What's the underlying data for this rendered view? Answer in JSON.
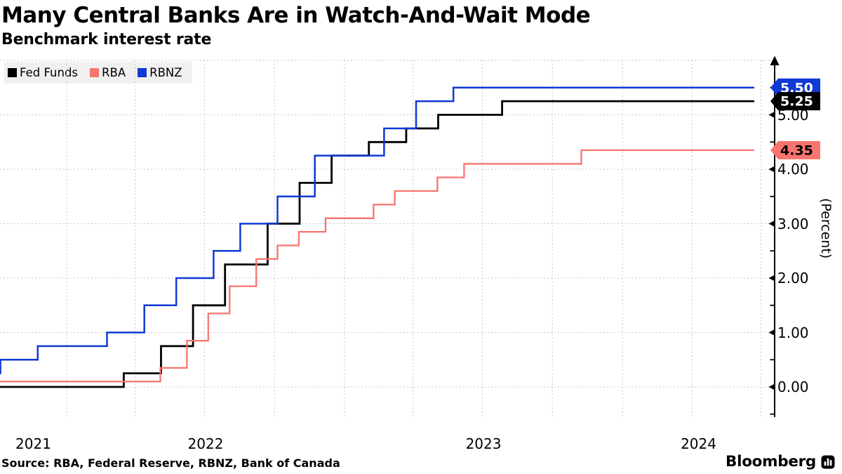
{
  "header": {
    "title": "Many Central Banks Are in Watch-And-Wait Mode",
    "subtitle": "Benchmark interest rate"
  },
  "legend": {
    "items": [
      {
        "label": "Fed Funds",
        "color": "#000000"
      },
      {
        "label": "RBA",
        "color": "#f8746f"
      },
      {
        "label": "RBNZ",
        "color": "#1139d4"
      }
    ]
  },
  "chart_data": {
    "type": "line",
    "line_style": "step-after",
    "title": "Many Central Banks Are in Watch-And-Wait Mode",
    "subtitle": "Benchmark interest rate",
    "ylabel": "(Percent)",
    "unit": "percent",
    "x_start": "2021-10-04",
    "x_end": "2024-06-21",
    "ylim": [
      -0.55,
      6.05
    ],
    "grid": "both",
    "legend_position": "top-left",
    "y_major_ticks": [
      0,
      1,
      2,
      3,
      4,
      5
    ],
    "y_tick_labels": [
      "0.00",
      "1.00",
      "2.00",
      "3.00",
      "4.00",
      "5.00"
    ],
    "y_minor_tick_step": 0.5,
    "x_year_labels": [
      "2021",
      "2022",
      "2023",
      "2024"
    ],
    "x_grid_quarters": [
      "2022-01-01",
      "2022-04-01",
      "2022-07-01",
      "2022-10-01",
      "2023-01-01",
      "2023-04-01",
      "2023-07-01",
      "2023-10-01",
      "2024-01-01",
      "2024-04-01",
      "2024-07-01"
    ],
    "series": [
      {
        "name": "Fed Funds",
        "color": "#000000",
        "initial_value": 0.0,
        "changes": [
          [
            "2022-03-17",
            0.25
          ],
          [
            "2022-05-05",
            0.75
          ],
          [
            "2022-06-16",
            1.5
          ],
          [
            "2022-07-28",
            2.25
          ],
          [
            "2022-09-22",
            3.0
          ],
          [
            "2022-11-03",
            3.75
          ],
          [
            "2022-12-15",
            4.25
          ],
          [
            "2023-02-02",
            4.5
          ],
          [
            "2023-03-23",
            4.75
          ],
          [
            "2023-05-04",
            5.0
          ],
          [
            "2023-07-27",
            5.25
          ]
        ],
        "final_value": 5.25,
        "end_label": "5.25",
        "end_label_bg": "#000000",
        "end_label_fg": "#ffffff"
      },
      {
        "name": "RBA",
        "color": "#f8746f",
        "initial_value": 0.1,
        "changes": [
          [
            "2022-05-04",
            0.35
          ],
          [
            "2022-06-08",
            0.85
          ],
          [
            "2022-07-06",
            1.35
          ],
          [
            "2022-08-03",
            1.85
          ],
          [
            "2022-09-07",
            2.35
          ],
          [
            "2022-10-05",
            2.6
          ],
          [
            "2022-11-02",
            2.85
          ],
          [
            "2022-12-07",
            3.1
          ],
          [
            "2023-02-08",
            3.35
          ],
          [
            "2023-03-08",
            3.6
          ],
          [
            "2023-05-03",
            3.85
          ],
          [
            "2023-06-07",
            4.1
          ],
          [
            "2023-11-08",
            4.35
          ]
        ],
        "final_value": 4.35,
        "end_label": "4.35",
        "end_label_bg": "#f8746f",
        "end_label_fg": "#000000"
      },
      {
        "name": "RBNZ",
        "color": "#1139d4",
        "initial_value": 0.25,
        "changes": [
          [
            "2021-10-06",
            0.5
          ],
          [
            "2021-11-24",
            0.75
          ],
          [
            "2022-02-23",
            1.0
          ],
          [
            "2022-04-13",
            1.5
          ],
          [
            "2022-05-25",
            2.0
          ],
          [
            "2022-07-13",
            2.5
          ],
          [
            "2022-08-17",
            3.0
          ],
          [
            "2022-10-05",
            3.5
          ],
          [
            "2022-11-23",
            4.25
          ],
          [
            "2023-02-22",
            4.75
          ],
          [
            "2023-04-05",
            5.25
          ],
          [
            "2023-05-24",
            5.5
          ]
        ],
        "final_value": 5.5,
        "end_label": "5.50",
        "end_label_bg": "#1139d4",
        "end_label_fg": "#ffffff"
      }
    ]
  },
  "footer": {
    "source": "Source: RBA, Federal Reserve, RBNZ, Bank of Canada",
    "brand": "Bloomberg"
  }
}
